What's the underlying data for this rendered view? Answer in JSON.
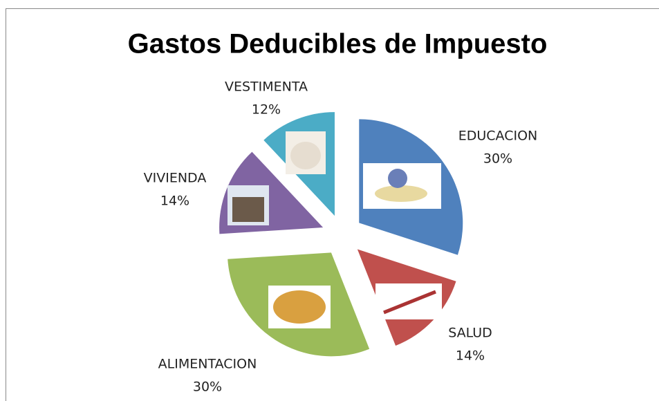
{
  "chart_data": {
    "type": "pie",
    "title": "Gastos Deducibles de Impuesto",
    "categories": [
      "EDUCACION",
      "SALUD",
      "ALIMENTACION",
      "VIVIENDA",
      "VESTIMENTA"
    ],
    "values": [
      30,
      14,
      30,
      14,
      12
    ],
    "value_labels": [
      "30%",
      "14%",
      "30%",
      "14%",
      "12%"
    ],
    "colors": [
      "#4f81bd",
      "#c0504d",
      "#9bbb59",
      "#8064a2",
      "#4bacc6"
    ]
  }
}
